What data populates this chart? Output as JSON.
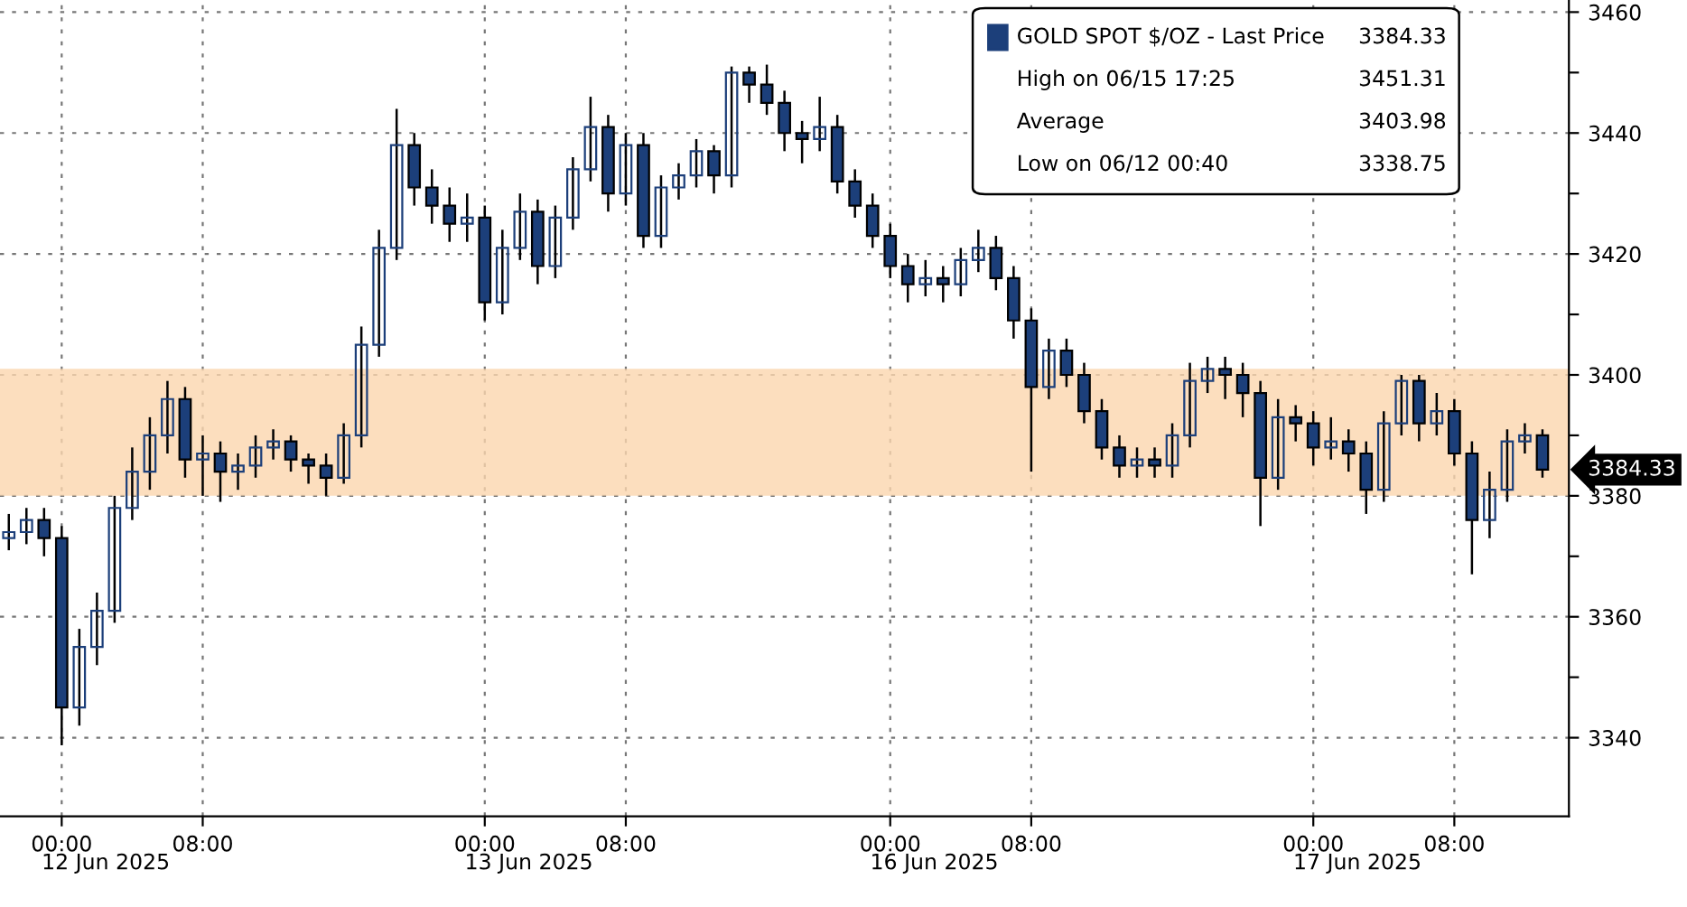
{
  "chart_data": {
    "type": "candlestick",
    "categories": [
      null,
      null,
      null,
      "00:00",
      null,
      null,
      null,
      null,
      null,
      null,
      null,
      "08:00",
      null,
      null,
      null,
      null,
      null,
      null,
      null,
      null,
      null,
      null,
      null,
      null,
      null,
      null,
      null,
      "00:00",
      null,
      null,
      null,
      null,
      null,
      null,
      null,
      "08:00",
      null,
      null,
      null,
      null,
      null,
      null,
      null,
      null,
      null,
      null,
      null,
      null,
      null,
      null,
      "00:00",
      null,
      null,
      null,
      null,
      null,
      null,
      null,
      "08:00",
      null,
      null,
      null,
      null,
      null,
      null,
      null,
      null,
      null,
      null,
      null,
      null,
      null,
      null,
      null,
      "00:00",
      null,
      null,
      null,
      null,
      null,
      null,
      null,
      "08:00",
      null,
      null,
      null,
      null,
      null
    ],
    "series": [
      {
        "name": "GOLD SPOT $/OZ - Last Price",
        "color": "#1c3f7a",
        "ohlc": [
          [
            3373,
            3377,
            3371,
            3374
          ],
          [
            3374,
            3378,
            3372,
            3376
          ],
          [
            3376,
            3378,
            3370,
            3373
          ],
          [
            3373,
            3375,
            3338.75,
            3345
          ],
          [
            3345,
            3358,
            3342,
            3355
          ],
          [
            3355,
            3364,
            3352,
            3361
          ],
          [
            3361,
            3380,
            3359,
            3378
          ],
          [
            3378,
            3388,
            3376,
            3384
          ],
          [
            3384,
            3393,
            3381,
            3390
          ],
          [
            3390,
            3399,
            3387,
            3396
          ],
          [
            3396,
            3398,
            3383,
            3386
          ],
          [
            3386,
            3390,
            3380,
            3387
          ],
          [
            3387,
            3389,
            3379,
            3384
          ],
          [
            3384,
            3387,
            3381,
            3385
          ],
          [
            3385,
            3390,
            3383,
            3388
          ],
          [
            3388,
            3391,
            3386,
            3389
          ],
          [
            3389,
            3390,
            3384,
            3386
          ],
          [
            3386,
            3387,
            3382,
            3385
          ],
          [
            3385,
            3387,
            3380,
            3383
          ],
          [
            3383,
            3392,
            3382,
            3390
          ],
          [
            3390,
            3408,
            3388,
            3405
          ],
          [
            3405,
            3424,
            3403,
            3421
          ],
          [
            3421,
            3444,
            3419,
            3438
          ],
          [
            3438,
            3440,
            3428,
            3431
          ],
          [
            3431,
            3434,
            3425,
            3428
          ],
          [
            3428,
            3431,
            3422,
            3425
          ],
          [
            3425,
            3430,
            3422,
            3426
          ],
          [
            3426,
            3428,
            3409,
            3412
          ],
          [
            3412,
            3424,
            3410,
            3421
          ],
          [
            3421,
            3430,
            3419,
            3427
          ],
          [
            3427,
            3429,
            3415,
            3418
          ],
          [
            3418,
            3428,
            3416,
            3426
          ],
          [
            3426,
            3436,
            3424,
            3434
          ],
          [
            3434,
            3446,
            3432,
            3441
          ],
          [
            3441,
            3443,
            3427,
            3430
          ],
          [
            3430,
            3440,
            3428,
            3438
          ],
          [
            3438,
            3440,
            3421,
            3423
          ],
          [
            3423,
            3433,
            3421,
            3431
          ],
          [
            3431,
            3435,
            3429,
            3433
          ],
          [
            3433,
            3439,
            3431,
            3437
          ],
          [
            3437,
            3438,
            3430,
            3433
          ],
          [
            3433,
            3451,
            3431,
            3450
          ],
          [
            3450,
            3451,
            3445,
            3448
          ],
          [
            3448,
            3451.31,
            3443,
            3445
          ],
          [
            3445,
            3447,
            3437,
            3440
          ],
          [
            3440,
            3442,
            3435,
            3439
          ],
          [
            3439,
            3446,
            3437,
            3441
          ],
          [
            3441,
            3443,
            3430,
            3432
          ],
          [
            3432,
            3434,
            3426,
            3428
          ],
          [
            3428,
            3430,
            3421,
            3423
          ],
          [
            3423,
            3425,
            3416,
            3418
          ],
          [
            3418,
            3420,
            3412,
            3415
          ],
          [
            3415,
            3419,
            3413,
            3416
          ],
          [
            3416,
            3418,
            3412,
            3415
          ],
          [
            3415,
            3421,
            3413,
            3419
          ],
          [
            3419,
            3424,
            3417,
            3421
          ],
          [
            3421,
            3423,
            3414,
            3416
          ],
          [
            3416,
            3418,
            3406,
            3409
          ],
          [
            3409,
            3411,
            3384,
            3398
          ],
          [
            3398,
            3406,
            3396,
            3404
          ],
          [
            3404,
            3406,
            3398,
            3400
          ],
          [
            3400,
            3402,
            3392,
            3394
          ],
          [
            3394,
            3396,
            3386,
            3388
          ],
          [
            3388,
            3390,
            3383,
            3385
          ],
          [
            3385,
            3388,
            3383,
            3386
          ],
          [
            3386,
            3388,
            3383,
            3385
          ],
          [
            3385,
            3392,
            3383,
            3390
          ],
          [
            3390,
            3402,
            3388,
            3399
          ],
          [
            3399,
            3403,
            3397,
            3401
          ],
          [
            3401,
            3403,
            3396,
            3400
          ],
          [
            3400,
            3402,
            3393,
            3397
          ],
          [
            3397,
            3399,
            3375,
            3383
          ],
          [
            3383,
            3396,
            3381,
            3393
          ],
          [
            3393,
            3395,
            3389,
            3392
          ],
          [
            3392,
            3394,
            3385,
            3388
          ],
          [
            3388,
            3393,
            3386,
            3389
          ],
          [
            3389,
            3391,
            3384,
            3387
          ],
          [
            3387,
            3389,
            3377,
            3381
          ],
          [
            3381,
            3394,
            3379,
            3392
          ],
          [
            3392,
            3400,
            3390,
            3399
          ],
          [
            3399,
            3400,
            3389,
            3392
          ],
          [
            3392,
            3397,
            3390,
            3394
          ],
          [
            3394,
            3396,
            3385,
            3387
          ],
          [
            3387,
            3389,
            3367,
            3376
          ],
          [
            3376,
            3384,
            3373,
            3381
          ],
          [
            3381,
            3391,
            3379,
            3389
          ],
          [
            3389,
            3392,
            3387,
            3390
          ],
          [
            3390,
            3391,
            3383,
            3384.33
          ]
        ]
      }
    ],
    "ylim": [
      3327,
      3462
    ],
    "yticks": [
      3340,
      {
        "value": 3350,
        "label": null
      },
      3360,
      {
        "value": 3370,
        "label": null
      },
      3380,
      {
        "value": 3390,
        "label": null
      },
      3400,
      {
        "value": 3410,
        "label": null
      },
      3420,
      {
        "value": 3430,
        "label": null
      },
      3440,
      {
        "value": 3450,
        "label": null
      },
      3460
    ],
    "bands": [
      {
        "axis": "y",
        "from": 3380,
        "to": 3401,
        "color": "#fbd6ae"
      }
    ],
    "annotations": [
      "3384.33",
      "High on 06/15 17:25",
      "3451.31",
      "Average",
      "3403.98",
      "Low on 06/12 00:40",
      "3338.75",
      "3384.33",
      "12 Jun 2025",
      "13 Jun 2025",
      "16 Jun 2025",
      "17 Jun 2025"
    ],
    "grid": true,
    "legend": "top right"
  }
}
